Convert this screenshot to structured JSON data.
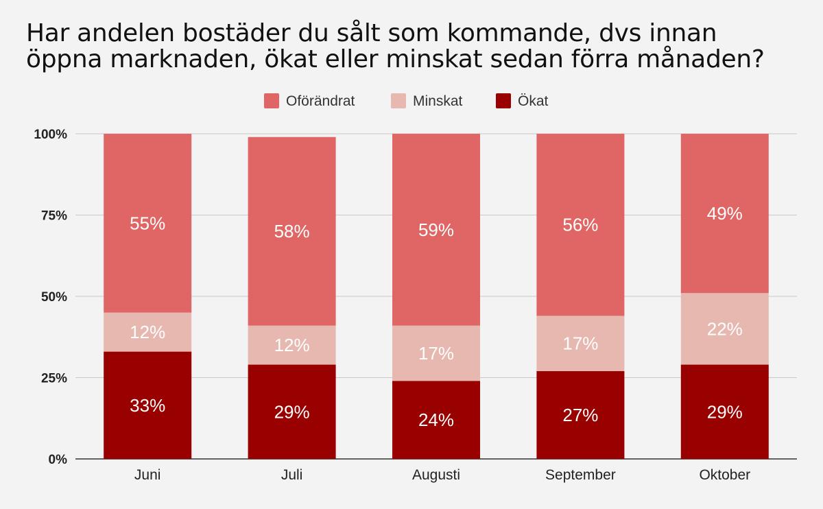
{
  "chart_data": {
    "type": "bar",
    "stacked": true,
    "title_lines": [
      "Har andelen bostäder du sålt som kommande, dvs innan",
      "öppna marknaden, ökat eller minskat sedan förra månaden?"
    ],
    "categories": [
      "Juni",
      "Juli",
      "Augusti",
      "September",
      "Oktober"
    ],
    "series": [
      {
        "name": "Ökat",
        "color": "#990000",
        "values": [
          33,
          29,
          24,
          27,
          29
        ],
        "labels": [
          "33%",
          "29%",
          "24%",
          "27%",
          "29%"
        ]
      },
      {
        "name": "Minskat",
        "color": "#e6b8af",
        "values": [
          12,
          12,
          17,
          17,
          22
        ],
        "labels": [
          "12%",
          "12%",
          "17%",
          "17%",
          "22%"
        ]
      },
      {
        "name": "Oförändrat",
        "color": "#e06666",
        "values": [
          55,
          58,
          59,
          56,
          49
        ],
        "labels": [
          "55%",
          "58%",
          "59%",
          "56%",
          "49%"
        ]
      }
    ],
    "legend": {
      "position": "top",
      "items": [
        {
          "name": "Oförändrat",
          "color": "#e06666"
        },
        {
          "name": "Minskat",
          "color": "#e6b8af"
        },
        {
          "name": "Ökat",
          "color": "#990000"
        }
      ]
    },
    "y_ticks": [
      0,
      25,
      50,
      75,
      100
    ],
    "y_tick_labels": [
      "0%",
      "25%",
      "50%",
      "75%",
      "100%"
    ],
    "ylim": [
      0,
      100
    ],
    "grid": true,
    "xlabel": "",
    "ylabel": ""
  }
}
